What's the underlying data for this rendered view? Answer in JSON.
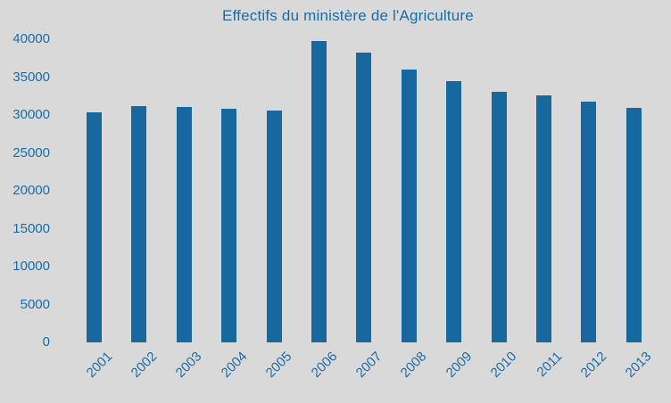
{
  "title": "Effectifs du ministère de l'Agriculture",
  "colors": {
    "background": "#d9d9d9",
    "bar": "#17689f",
    "text": "#1a6ca8"
  },
  "chart_data": {
    "type": "bar",
    "title": "Effectifs du ministère de l'Agriculture",
    "categories": [
      "2001",
      "2002",
      "2003",
      "2004",
      "2005",
      "2006",
      "2007",
      "2008",
      "2009",
      "2010",
      "2011",
      "2012",
      "2013"
    ],
    "values": [
      30400,
      31200,
      31100,
      30800,
      30600,
      39800,
      38200,
      36000,
      34500,
      33100,
      32600,
      31800,
      31000
    ],
    "xlabel": "",
    "ylabel": "",
    "ylim": [
      0,
      40000
    ],
    "y_ticks": [
      0,
      5000,
      10000,
      15000,
      20000,
      25000,
      30000,
      35000,
      40000
    ],
    "grid": false,
    "legend": false
  }
}
